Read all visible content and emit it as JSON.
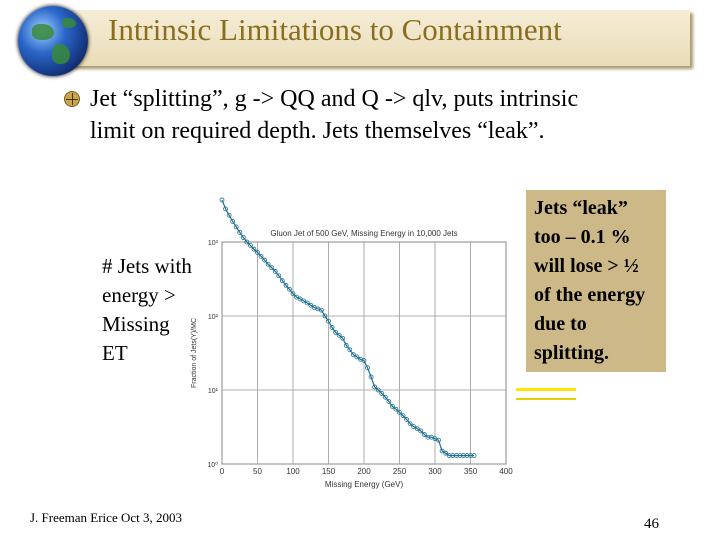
{
  "title": "Intrinsic Limitations to Containment",
  "bullet": "Jet “splitting”, g -> QQ and Q -> qlv, puts intrinsic limit on required depth. Jets themselves “leak”.",
  "side_label": "# Jets with energy > Missing ET",
  "callout": "Jets “leak” too – 0.1 % will lose > ½ of the energy due to splitting.",
  "footer": "J. Freeman   Erice  Oct 3, 2003",
  "page_number": "46",
  "colors": {
    "title": "#8a6d1f",
    "title_bar": "#efe4c7",
    "callout_bg": "#cdb888",
    "arrow": "#ffe600",
    "curve": "#1f6f8f"
  },
  "chart_data": {
    "type": "line",
    "title": "Gluon Jet of 500 GeV, Missing Energy in 10,000 Jets",
    "xlabel": "Missing Energy (GeV)",
    "ylabel": "Fraction of Jets(Y)/MC",
    "x_scale": "linear",
    "y_scale": "log",
    "xlim": [
      0,
      400
    ],
    "ylim_exp": [
      0,
      3
    ],
    "x_ticks": [
      "0",
      "50",
      "100",
      "150",
      "200",
      "250",
      "300",
      "350",
      "400"
    ],
    "y_ticks": [
      "10⁰",
      "10¹",
      "10²",
      "10³"
    ],
    "grid": true,
    "x": [
      0,
      5,
      10,
      15,
      20,
      25,
      30,
      35,
      40,
      45,
      50,
      55,
      60,
      65,
      70,
      75,
      80,
      85,
      90,
      95,
      100,
      105,
      110,
      115,
      120,
      125,
      130,
      135,
      140,
      145,
      150,
      155,
      160,
      165,
      170,
      175,
      180,
      185,
      190,
      195,
      200,
      205,
      210,
      215,
      220,
      225,
      230,
      235,
      240,
      245,
      250,
      255,
      260,
      265,
      270,
      275,
      280,
      285,
      290,
      295,
      300,
      305,
      310,
      315,
      320,
      325,
      330,
      335,
      340,
      345,
      350,
      355
    ],
    "y": [
      3700,
      2800,
      2300,
      1900,
      1600,
      1350,
      1150,
      1000,
      900,
      800,
      720,
      640,
      570,
      500,
      450,
      400,
      350,
      300,
      260,
      230,
      200,
      180,
      170,
      160,
      150,
      140,
      130,
      125,
      120,
      100,
      85,
      70,
      60,
      55,
      50,
      40,
      35,
      30,
      28,
      26,
      25,
      20,
      15,
      11,
      10,
      9,
      8,
      7,
      6,
      5.5,
      5,
      4.5,
      4,
      3.5,
      3.2,
      3,
      2.8,
      2.5,
      2.3,
      2.3,
      2.2,
      2.1,
      1.5,
      1.4,
      1.3,
      1.3,
      1.3,
      1.3,
      1.3,
      1.3,
      1.3,
      1.3
    ]
  }
}
